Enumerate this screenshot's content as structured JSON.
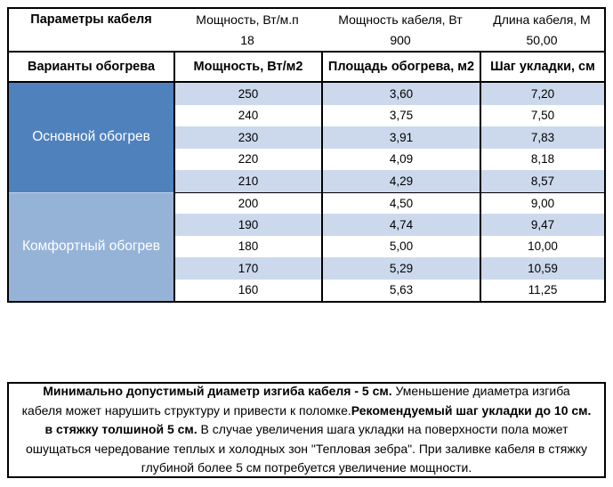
{
  "params": {
    "title": "Параметры кабеля",
    "power_per_meter_label": "Мощность, Вт/м.п",
    "power_per_meter_value": "18",
    "cable_power_label": "Мощность кабеля, Вт",
    "cable_power_value": "900",
    "cable_length_label": "Длина кабеля, М",
    "cable_length_value": "50,00"
  },
  "heating_table": {
    "columns": [
      "Варианты обогрева",
      "Мощность, Вт/м2",
      "Площадь обогрева, м2",
      "Шаг укладки, см"
    ],
    "groups": [
      {
        "label": "Основной обогрев",
        "rows": [
          [
            "250",
            "3,60",
            "7,20"
          ],
          [
            "240",
            "3,75",
            "7,50"
          ],
          [
            "230",
            "3,91",
            "7,83"
          ],
          [
            "220",
            "4,09",
            "8,18"
          ],
          [
            "210",
            "4,29",
            "8,57"
          ]
        ]
      },
      {
        "label": "Комфортный обогрев",
        "rows": [
          [
            "200",
            "4,50",
            "9,00"
          ],
          [
            "190",
            "4,74",
            "9,47"
          ],
          [
            "180",
            "5,00",
            "10,00"
          ],
          [
            "170",
            "5,29",
            "10,59"
          ],
          [
            "160",
            "5,63",
            "11,25"
          ]
        ]
      }
    ]
  },
  "note": {
    "segments": [
      {
        "text": "Минимально допустимый диаметр изгиба кабеля - 5 см.",
        "bold": true
      },
      {
        "text": "  Уменьшение диаметра изгиба кабеля может нарушить структуру и привести к поломке.",
        "bold": false
      },
      {
        "text": "Рекомендуемый шаг укладки до 10 см. в стяжку толшиной 5 см.",
        "bold": true
      },
      {
        "text": " В  случае увеличения шага укладки на поверхности пола может ошущаться чередование теплых и холодных зон \"Тепловая зебра\". При заливке кабеля в стяжку глубиной более 5 см потребуется увеличение мощности.",
        "bold": false
      }
    ]
  },
  "colors": {
    "group_main_fill": "#4f81bd",
    "group_comfort_fill": "#95b3d7",
    "row_band_fill": "#ccd9ed",
    "border": "#000000"
  }
}
